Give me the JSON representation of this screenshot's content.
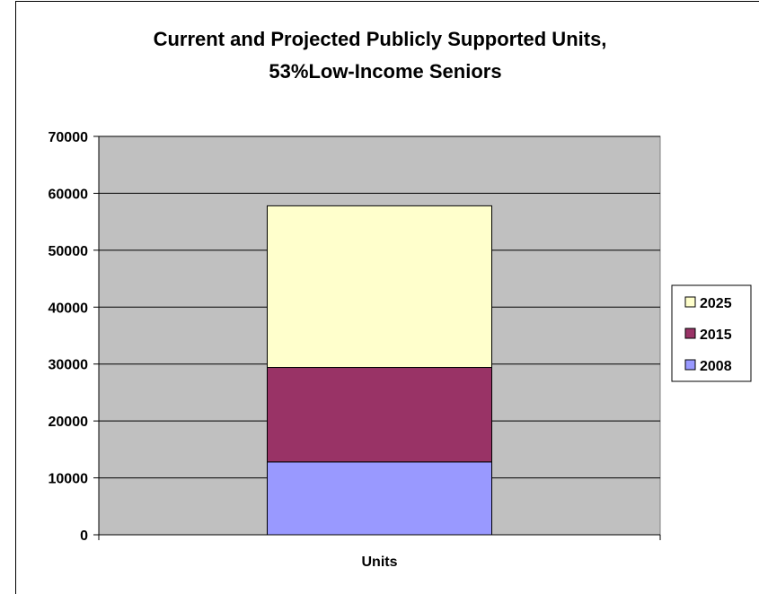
{
  "chart_data": {
    "type": "bar",
    "stacked": true,
    "title": "Current and Projected Publicly Supported Units,",
    "subtitle": "53%Low-Income Seniors",
    "categories": [
      "Units"
    ],
    "series": [
      {
        "name": "2008",
        "values": [
          12800
        ],
        "color": "#9999ff"
      },
      {
        "name": "2015",
        "values": [
          16600
        ],
        "color": "#993366"
      },
      {
        "name": "2025",
        "values": [
          28400
        ],
        "color": "#ffffcc"
      }
    ],
    "y_ticks": [
      "0",
      "10000",
      "20000",
      "30000",
      "40000",
      "50000",
      "60000",
      "70000"
    ],
    "ylim": [
      0,
      70000
    ],
    "grid": true,
    "plot_background": "#c0c0c0",
    "legend_position": "right",
    "legend_order": [
      "2025",
      "2015",
      "2008"
    ]
  }
}
